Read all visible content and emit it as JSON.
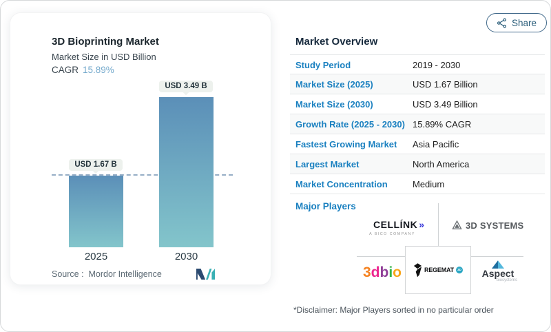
{
  "share": {
    "label": "Share"
  },
  "left_card": {
    "title": "3D Bioprinting Market",
    "subtitle": "Market Size in USD Billion",
    "cagr_label": "CAGR",
    "cagr_value": "15.89%",
    "source": "Source :  Mordor Intelligence"
  },
  "chart_data": {
    "type": "bar",
    "title": "3D Bioprinting Market",
    "ylabel": "Market Size in USD Billion",
    "categories": [
      "2025",
      "2030"
    ],
    "values": [
      1.67,
      3.49
    ],
    "bar_labels": [
      "USD 1.67 B",
      "USD 3.49 B"
    ],
    "unit": "USD Billion",
    "cagr_percent": 15.89,
    "dashed_reference_value": 1.67,
    "ylim": [
      0,
      3.49
    ],
    "bar_color_top": "#5b8fb8",
    "bar_color_bottom": "#83c5cb",
    "source": "Mordor Intelligence",
    "grid": false,
    "legend": false
  },
  "overview": {
    "heading": "Market Overview",
    "rows": [
      {
        "label": "Study Period",
        "value": "2019 - 2030"
      },
      {
        "label": "Market Size (2025)",
        "value": "USD 1.67 Billion"
      },
      {
        "label": "Market Size (2030)",
        "value": "USD 3.49 Billion"
      },
      {
        "label": "Growth Rate (2025 - 2030)",
        "value": "15.89% CAGR"
      },
      {
        "label": "Fastest Growing Market",
        "value": "Asia Pacific"
      },
      {
        "label": "Largest Market",
        "value": "North America"
      },
      {
        "label": "Market Concentration",
        "value": "Medium"
      }
    ],
    "major_players_label": "Major Players",
    "major_players": [
      "CELLINK",
      "3D SYSTEMS",
      "3dbio",
      "REGEMAT 3D",
      "Aspect Biosystems"
    ],
    "disclaimer": "*Disclaimer: Major Players sorted in no particular order"
  },
  "logos": {
    "cellink": {
      "name": "CELLÍNK",
      "chevrons": "»",
      "sub": "A BICO COMPANY"
    },
    "systems3d": {
      "name": "3D SYSTEMS"
    },
    "bio3d": {
      "letters": [
        "3",
        "d",
        "b",
        "i",
        "o"
      ]
    },
    "regemat": {
      "name": "REGEMAT",
      "badge": "3D"
    },
    "aspect": {
      "name": "Aspect",
      "sub": "biosystems"
    }
  },
  "colors": {
    "accent_blue": "#1a80c0",
    "cagr_blue": "#74a9cc",
    "bar_gradient_top": "#5b8fb8",
    "bar_gradient_bottom": "#83c5cb",
    "heading_dark": "#16293c"
  }
}
